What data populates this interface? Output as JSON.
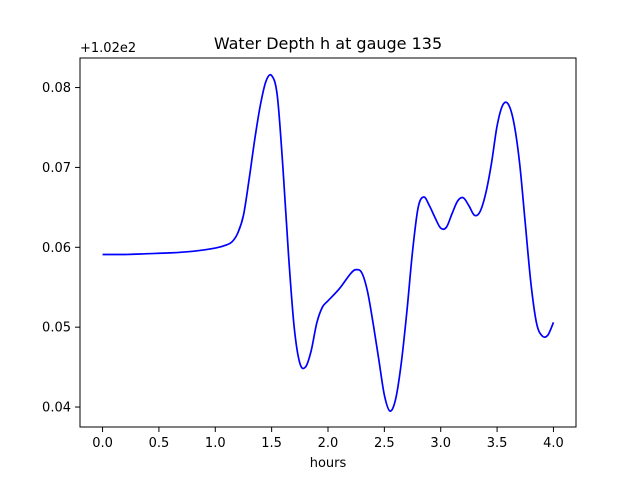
{
  "chart_data": {
    "type": "line",
    "title": "Water Depth h at gauge 135",
    "xlabel": "hours",
    "ylabel": "",
    "y_offset_label": "+1.02e2",
    "xlim": [
      -0.2,
      4.2
    ],
    "ylim": [
      0.0375,
      0.0837
    ],
    "xticks": [
      0.0,
      0.5,
      1.0,
      1.5,
      2.0,
      2.5,
      3.0,
      3.5,
      4.0
    ],
    "xtick_labels": [
      "0.0",
      "0.5",
      "1.0",
      "1.5",
      "2.0",
      "2.5",
      "3.0",
      "3.5",
      "4.0"
    ],
    "yticks": [
      0.04,
      0.05,
      0.06,
      0.07,
      0.08
    ],
    "ytick_labels": [
      "0.04",
      "0.05",
      "0.06",
      "0.07",
      "0.08"
    ],
    "grid": false,
    "legend": "none",
    "series": [
      {
        "color": "#0000ff",
        "x": [
          0.0,
          0.2,
          0.4,
          0.6,
          0.8,
          1.0,
          1.1,
          1.15,
          1.2,
          1.25,
          1.3,
          1.35,
          1.4,
          1.45,
          1.5,
          1.55,
          1.6,
          1.65,
          1.7,
          1.75,
          1.8,
          1.85,
          1.9,
          1.95,
          2.0,
          2.1,
          2.2,
          2.25,
          2.3,
          2.35,
          2.4,
          2.45,
          2.5,
          2.55,
          2.6,
          2.65,
          2.7,
          2.75,
          2.8,
          2.85,
          2.9,
          2.95,
          3.0,
          3.05,
          3.1,
          3.15,
          3.2,
          3.25,
          3.3,
          3.35,
          3.4,
          3.45,
          3.5,
          3.55,
          3.6,
          3.65,
          3.7,
          3.75,
          3.8,
          3.85,
          3.9,
          3.95,
          4.0
        ],
        "y": [
          0.0591,
          0.0591,
          0.0592,
          0.0593,
          0.0595,
          0.0599,
          0.0603,
          0.0607,
          0.0618,
          0.064,
          0.0685,
          0.0735,
          0.0778,
          0.0808,
          0.0815,
          0.079,
          0.07,
          0.059,
          0.05,
          0.0455,
          0.045,
          0.047,
          0.0505,
          0.0525,
          0.0533,
          0.0548,
          0.0567,
          0.0572,
          0.0568,
          0.0545,
          0.0505,
          0.046,
          0.0415,
          0.0395,
          0.041,
          0.0455,
          0.052,
          0.0595,
          0.065,
          0.0663,
          0.0652,
          0.0637,
          0.0624,
          0.0625,
          0.0642,
          0.0658,
          0.0662,
          0.0652,
          0.064,
          0.0645,
          0.0668,
          0.0705,
          0.0752,
          0.0778,
          0.0779,
          0.0755,
          0.0705,
          0.063,
          0.0555,
          0.0505,
          0.0489,
          0.049,
          0.0506
        ]
      }
    ]
  }
}
